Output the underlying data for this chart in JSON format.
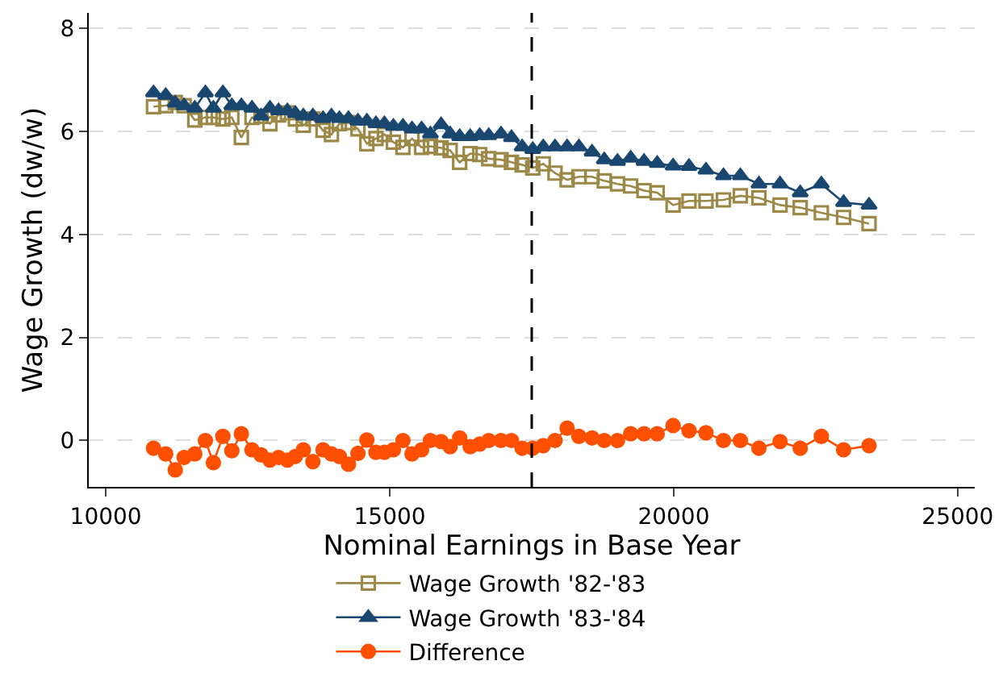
{
  "chart_data": {
    "type": "line",
    "xlabel": "Nominal Earnings in Base Year",
    "ylabel": "Wage Growth (dw/w)",
    "x": [
      10840,
      11055,
      11223,
      11379,
      11567,
      11754,
      11894,
      12062,
      12219,
      12387,
      12574,
      12734,
      12890,
      13042,
      13198,
      13338,
      13478,
      13646,
      13825,
      13973,
      14113,
      14273,
      14440,
      14597,
      14757,
      14905,
      15064,
      15232,
      15392,
      15560,
      15716,
      15904,
      16063,
      16231,
      16416,
      16584,
      16743,
      16959,
      17143,
      17331,
      17518,
      17703,
      17910,
      18123,
      18330,
      18562,
      18777,
      19010,
      19242,
      19477,
      19709,
      19989,
      20269,
      20568,
      20876,
      21173,
      21500,
      21872,
      22227,
      22599,
      22991,
      23439
    ],
    "series": [
      {
        "name": "Wage Growth '82-'83",
        "color": "#9c8847",
        "marker": "square",
        "values": [
          6.48,
          6.5,
          6.56,
          6.5,
          6.22,
          6.27,
          6.27,
          6.24,
          6.27,
          5.88,
          6.27,
          6.29,
          6.15,
          6.32,
          6.36,
          6.24,
          6.12,
          6.24,
          6.02,
          5.94,
          6.15,
          6.17,
          6.05,
          5.76,
          5.86,
          5.94,
          5.79,
          5.69,
          5.86,
          5.69,
          5.71,
          5.68,
          5.63,
          5.4,
          5.57,
          5.55,
          5.47,
          5.45,
          5.4,
          5.35,
          5.29,
          5.37,
          5.19,
          5.06,
          5.12,
          5.12,
          5.04,
          4.98,
          4.94,
          4.85,
          4.81,
          4.57,
          4.65,
          4.65,
          4.67,
          4.75,
          4.71,
          4.57,
          4.52,
          4.42,
          4.33,
          4.21
        ]
      },
      {
        "name": "Wage Growth '83-'84",
        "color": "#1a476f",
        "marker": "triangle",
        "values": [
          6.75,
          6.7,
          6.55,
          6.5,
          6.45,
          6.75,
          6.45,
          6.75,
          6.5,
          6.5,
          6.45,
          6.3,
          6.45,
          6.4,
          6.4,
          6.35,
          6.3,
          6.3,
          6.25,
          6.3,
          6.25,
          6.25,
          6.2,
          6.2,
          6.15,
          6.15,
          6.1,
          6.1,
          6.05,
          6.05,
          5.95,
          6.13,
          5.95,
          5.9,
          5.9,
          5.92,
          5.92,
          5.95,
          5.88,
          5.7,
          5.65,
          5.7,
          5.7,
          5.7,
          5.7,
          5.6,
          5.45,
          5.42,
          5.48,
          5.42,
          5.38,
          5.33,
          5.32,
          5.25,
          5.14,
          5.14,
          4.98,
          4.98,
          4.81,
          4.98,
          4.62,
          4.57
        ]
      },
      {
        "name": "Difference",
        "color": "#ff4f00",
        "marker": "circle",
        "values": [
          -0.15,
          -0.26,
          -0.57,
          -0.33,
          -0.26,
          0.0,
          -0.43,
          0.08,
          -0.2,
          0.13,
          -0.18,
          -0.28,
          -0.38,
          -0.33,
          -0.38,
          -0.31,
          -0.18,
          -0.41,
          -0.18,
          -0.26,
          -0.31,
          -0.46,
          -0.25,
          0.01,
          -0.23,
          -0.23,
          -0.18,
          0.0,
          -0.26,
          -0.18,
          0.0,
          -0.02,
          -0.12,
          0.05,
          -0.12,
          -0.07,
          0.0,
          0.0,
          0.0,
          -0.15,
          -0.15,
          -0.1,
          0.0,
          0.24,
          0.08,
          0.05,
          0.0,
          0.0,
          0.13,
          0.13,
          0.13,
          0.29,
          0.19,
          0.15,
          0.0,
          0.0,
          -0.15,
          -0.02,
          -0.15,
          0.08,
          -0.18,
          -0.1
        ]
      }
    ],
    "xlim": [
      9700,
      25300
    ],
    "xticks": [
      10000,
      15000,
      20000,
      25000
    ],
    "ylim": [
      -0.9,
      8.3
    ],
    "yticks": [
      0,
      2,
      4,
      6,
      8
    ],
    "grid": "y",
    "legend": "bottom",
    "line_style": "solid",
    "ref_lines": [
      {
        "axis": "x",
        "value": 17500,
        "color": "#000000",
        "line_style": "dashed"
      }
    ]
  }
}
